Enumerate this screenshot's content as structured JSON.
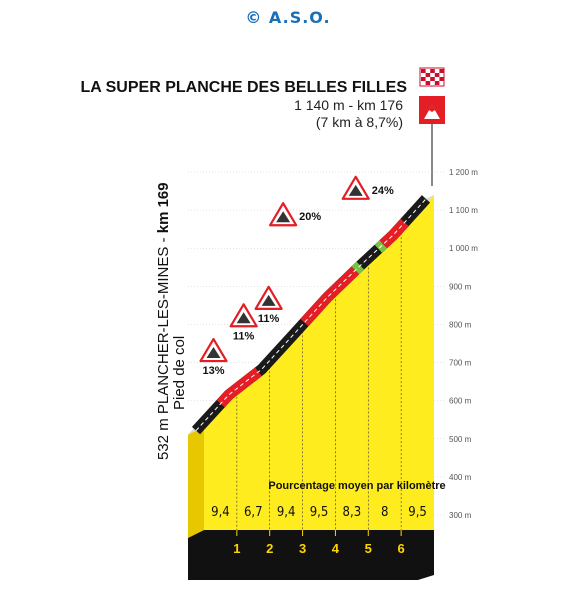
{
  "copyright": "© A.S.O.",
  "summit": {
    "name": "LA SUPER PLANCHE DES BELLES FILLES",
    "line2": "1 140 m - km 176",
    "line3": "(7 km à 8,7%)"
  },
  "start": {
    "prefix": "532 m PLANCHER-LES-MINES - ",
    "km": "km 169",
    "subtitle": "Pied de col"
  },
  "legend": "Pourcentage moyen par kilomètre",
  "colors": {
    "fill": "#ffec1e",
    "fill_dark": "#e7c800",
    "road": "#1a1a1a",
    "steep": "#e31e24",
    "flat": "#7ac143",
    "base": "#111111",
    "grid": "#bdbdbd",
    "copyright": "#1a6fb8"
  },
  "chart_data": {
    "type": "area",
    "title": "LA SUPER PLANCHE DES BELLES FILLES",
    "y_axis": {
      "ticks": [
        "300 m",
        "400 m",
        "500 m",
        "600 m",
        "700 m",
        "800 m",
        "900 m",
        "1 000 m",
        "1 100 m",
        "1 200 m"
      ],
      "tick_values": [
        300,
        400,
        500,
        600,
        700,
        800,
        900,
        1000,
        1100,
        1200
      ],
      "range": [
        300,
        1200
      ]
    },
    "x_axis": {
      "ticks": [
        "1",
        "2",
        "3",
        "4",
        "5",
        "6"
      ],
      "tick_values": [
        1,
        2,
        3,
        4,
        5,
        6
      ],
      "range": [
        0,
        7
      ]
    },
    "profile": [
      {
        "km": 0,
        "alt": 532
      },
      {
        "km": 1,
        "alt": 626
      },
      {
        "km": 2,
        "alt": 693
      },
      {
        "km": 3,
        "alt": 787
      },
      {
        "km": 4,
        "alt": 882
      },
      {
        "km": 5,
        "alt": 965
      },
      {
        "km": 6,
        "alt": 1045
      },
      {
        "km": 7,
        "alt": 1140
      }
    ],
    "segment_gradients": [
      "9,4",
      "6,7",
      "9,4",
      "9,5",
      "8,3",
      "8",
      "9,5"
    ],
    "road_segments": [
      {
        "from": 0,
        "to": 0.75,
        "kind": "normal"
      },
      {
        "from": 0.75,
        "to": 1.9,
        "kind": "steep"
      },
      {
        "from": 1.9,
        "to": 3.3,
        "kind": "normal"
      },
      {
        "from": 3.3,
        "to": 4.85,
        "kind": "steep"
      },
      {
        "from": 4.85,
        "to": 5.0,
        "kind": "flat"
      },
      {
        "from": 5.0,
        "to": 5.55,
        "kind": "normal"
      },
      {
        "from": 5.55,
        "to": 5.7,
        "kind": "flat"
      },
      {
        "from": 5.7,
        "to": 6.35,
        "kind": "steep"
      },
      {
        "from": 6.35,
        "to": 7.0,
        "kind": "normal"
      }
    ],
    "max_gradient_markers": [
      {
        "label": "13%",
        "km": 0.35
      },
      {
        "label": "11%",
        "km": 1.45
      },
      {
        "label": "11%",
        "km": 2.15
      },
      {
        "label": "20%",
        "km": 4.6
      },
      {
        "label": "24%",
        "km": 6.2
      }
    ]
  }
}
